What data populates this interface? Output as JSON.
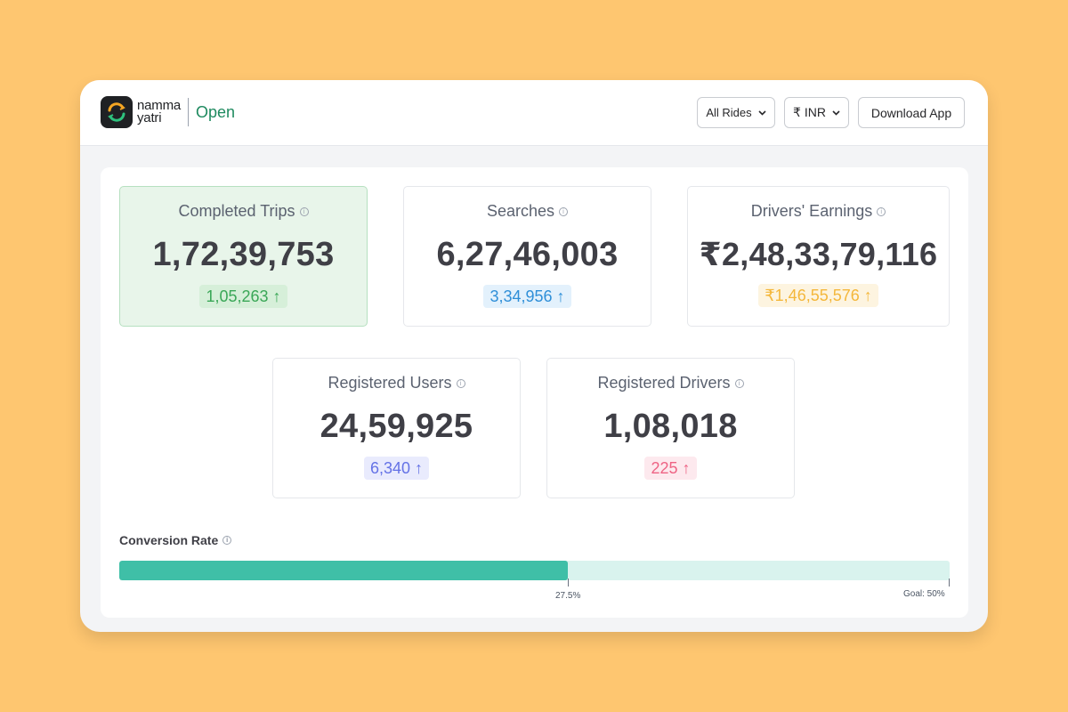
{
  "header": {
    "logo_line1": "namma",
    "logo_line2": "yatri",
    "logo_suffix": "Open",
    "rides_select": "All Rides",
    "currency_select": "₹ INR",
    "download_button": "Download App"
  },
  "stats": [
    {
      "title": "Completed Trips",
      "value": "1,72,39,753",
      "delta": "1,05,263 ↑",
      "delta_color": "#3aa757",
      "delta_bg": "#d6efd9"
    },
    {
      "title": "Searches",
      "value": "6,27,46,003",
      "delta": "3,34,956 ↑",
      "delta_color": "#2f8fd8",
      "delta_bg": "#e3f1fc"
    },
    {
      "title": "Drivers' Earnings",
      "value": "₹2,48,33,79,116",
      "delta": "₹1,46,55,576 ↑",
      "delta_color": "#f4b73b",
      "delta_bg": "#fdf4e0"
    },
    {
      "title": "Registered Users",
      "value": "24,59,925",
      "delta": "6,340 ↑",
      "delta_color": "#6472e6",
      "delta_bg": "#e9ebfd"
    },
    {
      "title": "Registered Drivers",
      "value": "1,08,018",
      "delta": "225 ↑",
      "delta_color": "#ee6384",
      "delta_bg": "#fde9ee"
    }
  ],
  "conversion": {
    "title": "Conversion Rate",
    "current_label": "27.5%",
    "goal_label": "Goal: 50%",
    "progress_fraction": 0.54,
    "fill_color": "#3fbfa7",
    "track_color": "#d9f3ee"
  },
  "colors": {
    "background": "#fec670",
    "brand_green": "#1e8a5f"
  }
}
